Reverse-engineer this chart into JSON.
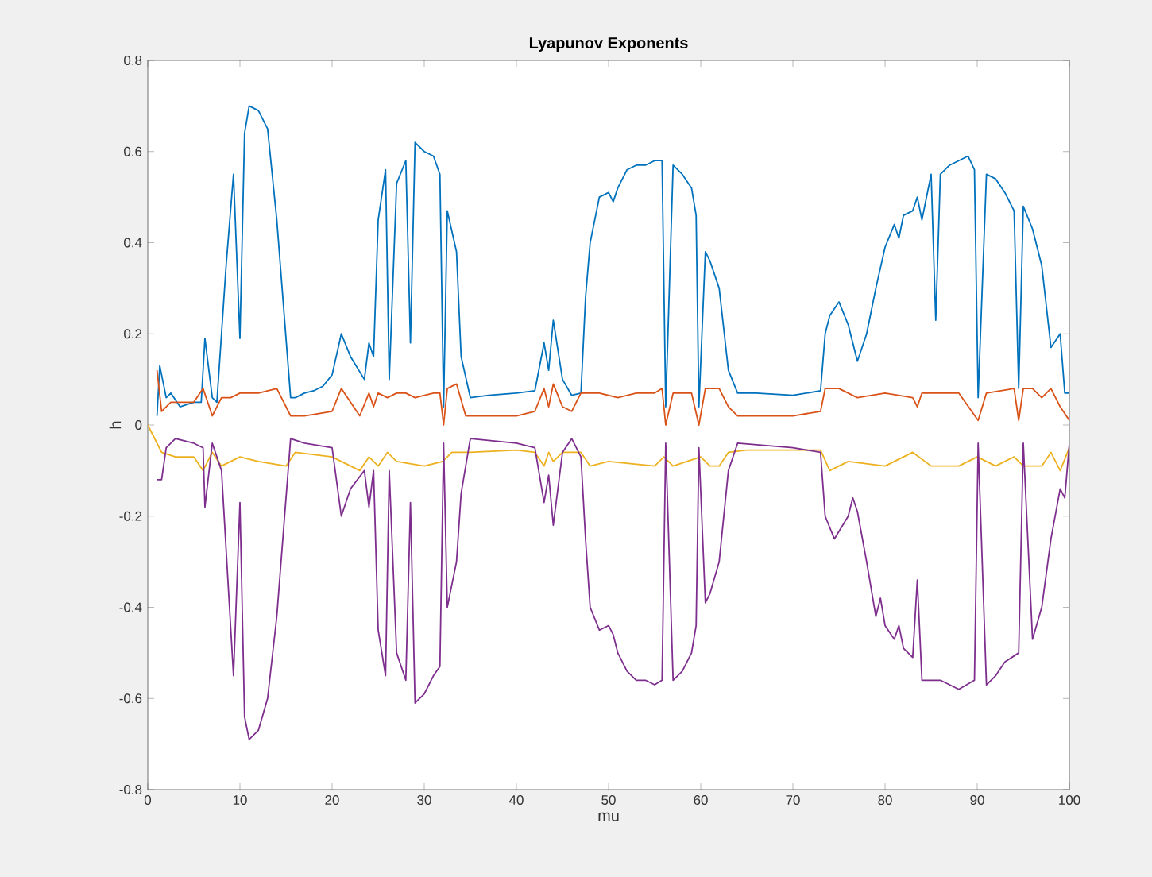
{
  "chart_data": {
    "type": "line",
    "title": "Lyapunov Exponents",
    "xlabel": "mu",
    "ylabel": "h",
    "xlim": [
      0,
      100
    ],
    "ylim": [
      -0.8,
      0.8
    ],
    "xticks": [
      0,
      10,
      20,
      30,
      40,
      50,
      60,
      70,
      80,
      90,
      100
    ],
    "yticks": [
      -0.8,
      -0.6,
      -0.4,
      -0.2,
      0,
      0.2,
      0.4,
      0.6,
      0.8
    ],
    "grid": false,
    "marker": "none",
    "line_style": "solid",
    "series": [
      {
        "color": "#0072bd",
        "x": [
          1,
          1.3,
          2,
          2.5,
          3.5,
          5,
          5.8,
          6.2,
          7,
          7.5,
          8.5,
          9.3,
          10,
          10.5,
          11,
          12,
          13,
          14,
          15.5,
          16,
          17,
          18,
          19,
          20,
          21,
          22,
          23.5,
          24,
          24.5,
          25,
          25.8,
          26.2,
          27,
          28,
          28.5,
          29,
          30,
          31,
          31.7,
          32.1,
          32.5,
          33.5,
          34,
          35,
          37,
          40,
          42,
          43,
          43.5,
          44,
          45,
          46,
          47,
          47.5,
          48,
          49,
          50,
          50.5,
          51,
          52,
          53,
          54,
          55,
          55.8,
          56.2,
          57,
          58,
          59,
          59.5,
          59.8,
          60.5,
          61,
          62,
          63,
          64,
          66,
          70,
          73,
          73.5,
          74,
          75,
          76,
          76.5,
          77,
          78,
          79,
          80,
          81,
          81.5,
          82,
          83,
          83.5,
          84,
          85,
          85.5,
          86,
          87,
          88,
          89,
          89.7,
          90.1,
          91,
          92,
          93,
          94,
          94.5,
          95,
          96,
          97,
          98,
          99,
          99.5,
          100
        ],
        "values": [
          0.02,
          0.13,
          0.06,
          0.07,
          0.04,
          0.05,
          0.05,
          0.19,
          0.06,
          0.05,
          0.35,
          0.55,
          0.19,
          0.64,
          0.7,
          0.69,
          0.65,
          0.45,
          0.06,
          0.06,
          0.07,
          0.075,
          0.085,
          0.11,
          0.2,
          0.15,
          0.1,
          0.18,
          0.15,
          0.45,
          0.56,
          0.1,
          0.53,
          0.58,
          0.18,
          0.62,
          0.6,
          0.59,
          0.55,
          0.04,
          0.47,
          0.38,
          0.15,
          0.06,
          0.065,
          0.07,
          0.075,
          0.18,
          0.12,
          0.23,
          0.1,
          0.065,
          0.07,
          0.28,
          0.4,
          0.5,
          0.51,
          0.49,
          0.52,
          0.56,
          0.57,
          0.57,
          0.58,
          0.58,
          0.04,
          0.57,
          0.55,
          0.52,
          0.46,
          0.04,
          0.38,
          0.36,
          0.3,
          0.12,
          0.07,
          0.07,
          0.065,
          0.075,
          0.2,
          0.24,
          0.27,
          0.22,
          0.18,
          0.14,
          0.2,
          0.3,
          0.39,
          0.44,
          0.41,
          0.46,
          0.47,
          0.5,
          0.45,
          0.55,
          0.23,
          0.55,
          0.57,
          0.58,
          0.59,
          0.56,
          0.06,
          0.55,
          0.54,
          0.51,
          0.47,
          0.08,
          0.48,
          0.43,
          0.35,
          0.17,
          0.2,
          0.07,
          0.07
        ]
      },
      {
        "color": "#d95319",
        "x": [
          1,
          1.5,
          2.5,
          5,
          6,
          7,
          8,
          9,
          10,
          12,
          14,
          15.5,
          17,
          20,
          21,
          22,
          23,
          24,
          24.5,
          25,
          26,
          27,
          28,
          29,
          31,
          31.7,
          32.1,
          32.5,
          33.5,
          34.5,
          37,
          40,
          42,
          43,
          43.5,
          44,
          45,
          46,
          47,
          49,
          51,
          53,
          55,
          55.8,
          56.2,
          57,
          59,
          59.8,
          60.5,
          62,
          63,
          64,
          70,
          73,
          73.5,
          75,
          76,
          77,
          80,
          83,
          83.5,
          84,
          88,
          90.1,
          91,
          94,
          94.5,
          95,
          96,
          97,
          98,
          99,
          100
        ],
        "values": [
          0.12,
          0.03,
          0.05,
          0.05,
          0.08,
          0.02,
          0.06,
          0.06,
          0.07,
          0.07,
          0.08,
          0.02,
          0.02,
          0.03,
          0.08,
          0.05,
          0.02,
          0.07,
          0.04,
          0.07,
          0.06,
          0.07,
          0.07,
          0.06,
          0.07,
          0.07,
          0.0,
          0.08,
          0.09,
          0.02,
          0.02,
          0.02,
          0.03,
          0.08,
          0.04,
          0.09,
          0.04,
          0.03,
          0.07,
          0.07,
          0.06,
          0.07,
          0.07,
          0.08,
          0.0,
          0.07,
          0.07,
          0.0,
          0.08,
          0.08,
          0.04,
          0.02,
          0.02,
          0.03,
          0.08,
          0.08,
          0.07,
          0.06,
          0.07,
          0.06,
          0.04,
          0.07,
          0.07,
          0.01,
          0.07,
          0.08,
          0.01,
          0.08,
          0.08,
          0.06,
          0.08,
          0.04,
          0.01
        ]
      },
      {
        "color": "#edb120",
        "x": [
          0,
          0.5,
          1.5,
          3,
          5,
          6,
          7,
          8,
          10,
          12,
          15,
          16,
          20,
          22,
          23,
          24,
          25,
          26,
          27,
          30,
          32,
          33,
          35,
          40,
          42,
          43,
          43.5,
          44,
          45,
          47,
          48,
          50,
          55,
          56,
          57,
          60,
          61,
          62,
          63,
          65,
          73,
          74,
          76,
          80,
          83,
          85,
          88,
          90,
          92,
          94,
          95,
          97,
          98,
          99,
          100
        ],
        "values": [
          0.0,
          -0.02,
          -0.06,
          -0.07,
          -0.07,
          -0.1,
          -0.06,
          -0.09,
          -0.07,
          -0.08,
          -0.09,
          -0.06,
          -0.07,
          -0.09,
          -0.1,
          -0.07,
          -0.09,
          -0.06,
          -0.08,
          -0.09,
          -0.08,
          -0.06,
          -0.06,
          -0.055,
          -0.06,
          -0.09,
          -0.06,
          -0.08,
          -0.06,
          -0.06,
          -0.09,
          -0.08,
          -0.09,
          -0.07,
          -0.09,
          -0.07,
          -0.09,
          -0.09,
          -0.06,
          -0.055,
          -0.055,
          -0.1,
          -0.08,
          -0.09,
          -0.06,
          -0.09,
          -0.09,
          -0.07,
          -0.09,
          -0.07,
          -0.09,
          -0.09,
          -0.06,
          -0.1,
          -0.05
        ]
      },
      {
        "color": "#7e2f8e",
        "x": [
          1,
          1.5,
          2,
          3,
          5,
          6,
          6.2,
          7,
          8,
          9.3,
          10,
          10.5,
          11,
          12,
          13,
          14,
          15.5,
          17,
          20,
          21,
          22,
          23.5,
          24,
          24.5,
          25,
          25.8,
          26.2,
          27,
          28,
          28.5,
          29,
          30,
          31,
          31.7,
          32.1,
          32.5,
          33.5,
          34,
          35,
          40,
          42,
          43,
          43.5,
          44,
          45,
          46,
          47,
          47.5,
          48,
          49,
          50,
          50.5,
          51,
          52,
          53,
          54,
          55,
          55.8,
          56.2,
          57,
          58,
          59,
          59.5,
          59.8,
          60.5,
          61,
          62,
          63,
          64,
          70,
          73,
          73.5,
          74.5,
          76,
          76.5,
          77,
          78,
          79,
          79.5,
          80,
          81,
          81.5,
          82,
          83,
          83.5,
          84,
          86,
          88,
          89.7,
          90.1,
          91,
          92,
          93,
          94.5,
          95,
          96,
          97,
          98,
          99,
          99.5,
          100
        ],
        "values": [
          -0.12,
          -0.12,
          -0.05,
          -0.03,
          -0.04,
          -0.05,
          -0.18,
          -0.04,
          -0.1,
          -0.55,
          -0.17,
          -0.64,
          -0.69,
          -0.67,
          -0.6,
          -0.42,
          -0.03,
          -0.04,
          -0.05,
          -0.2,
          -0.14,
          -0.1,
          -0.18,
          -0.1,
          -0.45,
          -0.55,
          -0.1,
          -0.5,
          -0.56,
          -0.17,
          -0.61,
          -0.59,
          -0.55,
          -0.53,
          -0.04,
          -0.4,
          -0.3,
          -0.15,
          -0.03,
          -0.04,
          -0.05,
          -0.17,
          -0.11,
          -0.22,
          -0.06,
          -0.03,
          -0.07,
          -0.25,
          -0.4,
          -0.45,
          -0.44,
          -0.46,
          -0.5,
          -0.54,
          -0.56,
          -0.56,
          -0.57,
          -0.56,
          -0.04,
          -0.56,
          -0.54,
          -0.5,
          -0.44,
          -0.05,
          -0.39,
          -0.37,
          -0.3,
          -0.1,
          -0.04,
          -0.05,
          -0.06,
          -0.2,
          -0.25,
          -0.2,
          -0.16,
          -0.19,
          -0.3,
          -0.42,
          -0.38,
          -0.44,
          -0.47,
          -0.44,
          -0.49,
          -0.51,
          -0.34,
          -0.56,
          -0.56,
          -0.58,
          -0.56,
          -0.04,
          -0.57,
          -0.55,
          -0.52,
          -0.5,
          -0.04,
          -0.47,
          -0.4,
          -0.25,
          -0.14,
          -0.16,
          -0.04
        ]
      }
    ]
  }
}
